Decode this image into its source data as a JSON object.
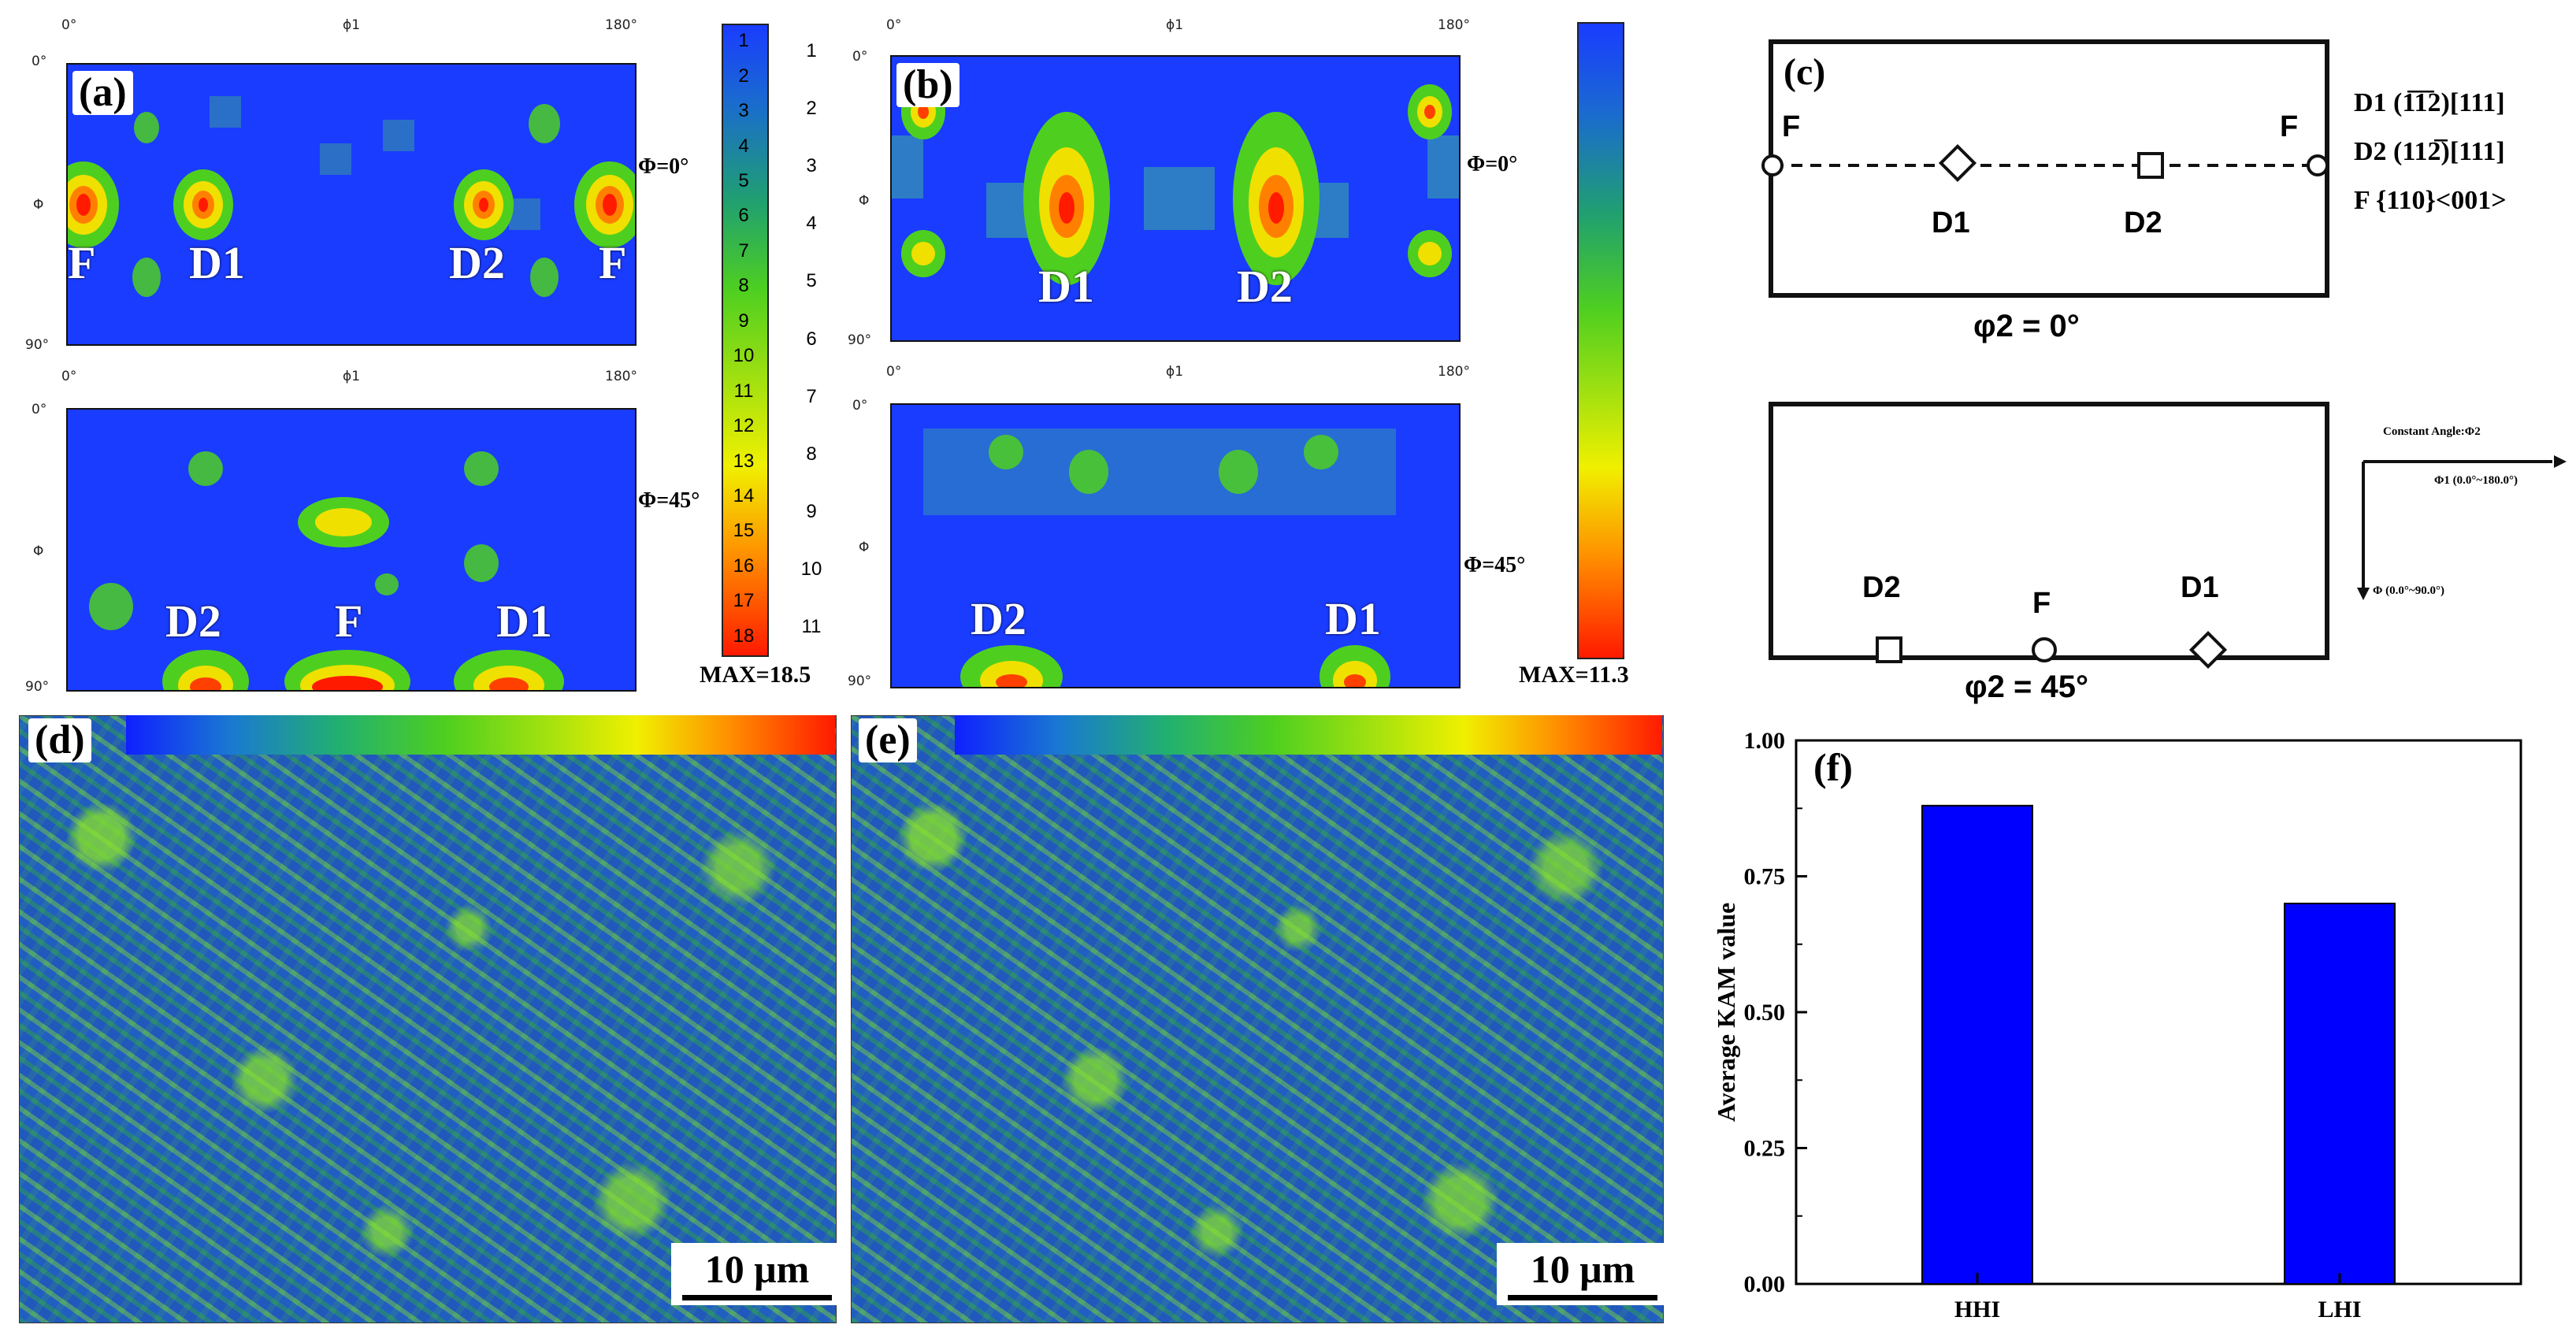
{
  "panels": {
    "a": {
      "label": "(a)",
      "max_label": "MAX=18.5",
      "top_ticks": {
        "left": "0°",
        "mid": "ϕ1",
        "right": "180°",
        "y_top": "0°",
        "y_mid": "Φ",
        "y_bottom": "90°"
      },
      "bottom_ticks": {
        "left": "0°",
        "mid": "ϕ1",
        "right": "180°",
        "y_top": "0°",
        "y_mid": "Φ",
        "y_bottom": "90°"
      },
      "phi_top": "Φ=0°",
      "phi_bottom": "Φ=45°",
      "top_peaks": [
        "F",
        "D1",
        "D2",
        "F"
      ],
      "bottom_peaks": [
        "D2",
        "F",
        "D1"
      ],
      "colorbar_ticks": [
        "1",
        "2",
        "3",
        "4",
        "5",
        "6",
        "7",
        "8",
        "9",
        "10",
        "11",
        "12",
        "13",
        "14",
        "15",
        "16",
        "17",
        "18"
      ]
    },
    "b": {
      "label": "(b)",
      "max_label": "MAX=11.3",
      "top_ticks": {
        "left": "0°",
        "mid": "ϕ1",
        "right": "180°",
        "y_top": "0°",
        "y_mid": "Φ",
        "y_bottom": "90°"
      },
      "bottom_ticks": {
        "left": "0°",
        "mid": "ϕ1",
        "right": "180°",
        "y_top": "0°",
        "y_mid": "Φ",
        "y_bottom": "90°"
      },
      "phi_top": "Φ=0°",
      "phi_bottom": "Φ=45°",
      "top_peaks": [
        "D1",
        "D2"
      ],
      "bottom_peaks": [
        "D2",
        "D1"
      ],
      "colorbar_ticks": [
        "1",
        "2",
        "3",
        "4",
        "5",
        "6",
        "7",
        "8",
        "9",
        "10",
        "11"
      ]
    },
    "c": {
      "label": "(c)",
      "phi2_top": "φ2 = 0°",
      "phi2_bottom": "φ2 = 45°",
      "top_labels": {
        "f_left": "F",
        "f_right": "F",
        "d1": "D1",
        "d2": "D2"
      },
      "bottom_labels": {
        "d2": "D2",
        "f": "F",
        "d1": "D1"
      },
      "legend": [
        "D1 (1̅1̅2)[111]",
        "D2 (112̅)[111]",
        "F {110}<001>"
      ],
      "axis_legend": {
        "title": "Constant Angle:Φ2",
        "x": "Φ1 (0.0°~180.0°)",
        "y": "Φ (0.0°~90.0°)"
      }
    },
    "d": {
      "label": "(d)",
      "scale": "10 μm"
    },
    "e": {
      "label": "(e)",
      "scale": "10 μm"
    },
    "f": {
      "label": "(f)"
    }
  },
  "chart_data": {
    "type": "bar",
    "categories": [
      "HHI",
      "LHI"
    ],
    "values": [
      0.88,
      0.7
    ],
    "ylabel": "Average KAM value",
    "xlabel": "",
    "ylim": [
      0,
      1.0
    ],
    "yticks": [
      "0.00",
      "0.25",
      "0.50",
      "0.75",
      "1.00"
    ],
    "bar_color": "#0000ff"
  },
  "colors": {
    "odf_background": "#1a3cff",
    "text": "#000000"
  }
}
